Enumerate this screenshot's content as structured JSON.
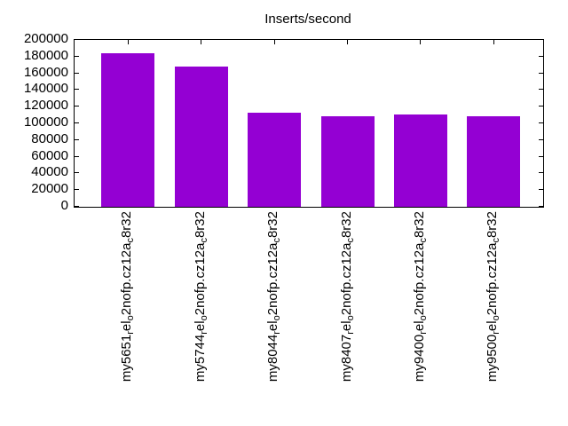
{
  "colors": {
    "background": "#ffffff",
    "bar": "#9400d3",
    "axis": "#000000",
    "text": "#000000"
  },
  "chart_data": {
    "type": "bar",
    "title": "Inserts/second",
    "xlabel": "",
    "ylabel": "",
    "ylim": [
      0,
      200000
    ],
    "ytick_step": 20000,
    "yticks": [
      0,
      20000,
      40000,
      60000,
      80000,
      100000,
      120000,
      140000,
      160000,
      180000,
      200000
    ],
    "grid": false,
    "legend_position": "none",
    "bar_color": "#9400d3",
    "x_label_rotation_degrees": 90,
    "categories": [
      "my5651_rel_o2nofp.cz12a_c8r32",
      "my5744_rel_o2nofp.cz12a_c8r32",
      "my8044_rel_o2nofp.cz12a_c8r32",
      "my8407_rel_o2nofp.cz12a_c8r32",
      "my9400_rel_o2nofp.cz12a_c8r32",
      "my9500_rel_o2nofp.cz12a_c8r32"
    ],
    "categories_rendered": [
      [
        {
          "t": "my5651"
        },
        {
          "t": "r",
          "sub": true
        },
        {
          "t": "el"
        },
        {
          "t": "o",
          "sub": true
        },
        {
          "t": "2nofp.cz12a"
        },
        {
          "t": "c",
          "sub": true
        },
        {
          "t": "8r32"
        }
      ],
      [
        {
          "t": "my5744"
        },
        {
          "t": "r",
          "sub": true
        },
        {
          "t": "el"
        },
        {
          "t": "o",
          "sub": true
        },
        {
          "t": "2nofp.cz12a"
        },
        {
          "t": "c",
          "sub": true
        },
        {
          "t": "8r32"
        }
      ],
      [
        {
          "t": "my8044"
        },
        {
          "t": "r",
          "sub": true
        },
        {
          "t": "el"
        },
        {
          "t": "o",
          "sub": true
        },
        {
          "t": "2nofp.cz12a"
        },
        {
          "t": "c",
          "sub": true
        },
        {
          "t": "8r32"
        }
      ],
      [
        {
          "t": "my8407"
        },
        {
          "t": "r",
          "sub": true
        },
        {
          "t": "el"
        },
        {
          "t": "o",
          "sub": true
        },
        {
          "t": "2nofp.cz12a"
        },
        {
          "t": "c",
          "sub": true
        },
        {
          "t": "8r32"
        }
      ],
      [
        {
          "t": "my9400"
        },
        {
          "t": "r",
          "sub": true
        },
        {
          "t": "el"
        },
        {
          "t": "o",
          "sub": true
        },
        {
          "t": "2nofp.cz12a"
        },
        {
          "t": "c",
          "sub": true
        },
        {
          "t": "8r32"
        }
      ],
      [
        {
          "t": "my9500"
        },
        {
          "t": "r",
          "sub": true
        },
        {
          "t": "el"
        },
        {
          "t": "o",
          "sub": true
        },
        {
          "t": "2nofp.cz12a"
        },
        {
          "t": "c",
          "sub": true
        },
        {
          "t": "8r32"
        }
      ]
    ],
    "values": [
      184000,
      168000,
      113000,
      108500,
      110500,
      109000
    ]
  }
}
